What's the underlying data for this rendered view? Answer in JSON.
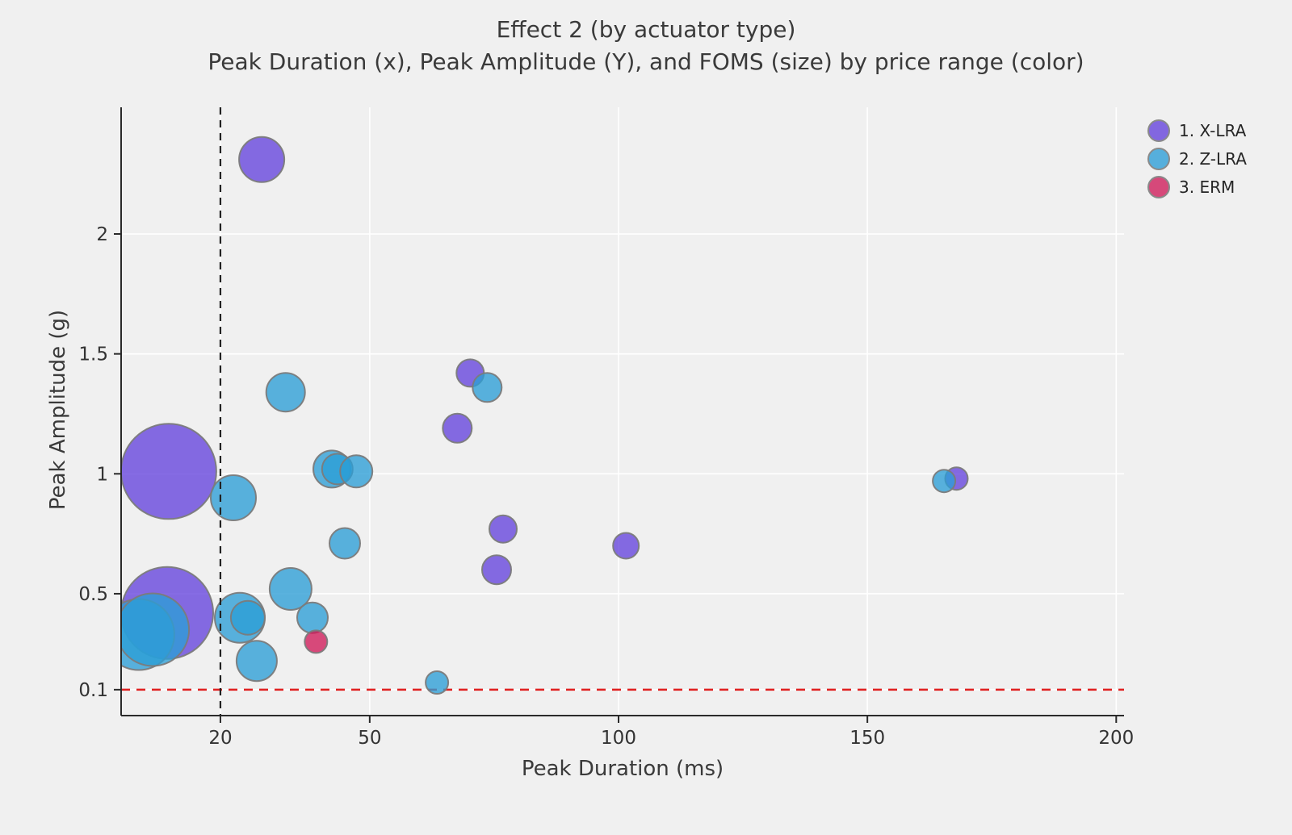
{
  "title": "Effect 2 (by actuator type)",
  "subtitle": "Peak Duration (x), Peak Amplitude (Y), and FOMS (size) by price range (color)",
  "chart_data": {
    "type": "scatter",
    "subtype": "bubble",
    "title": "Effect 2 (by actuator type)",
    "subtitle": "Peak Duration (x), Peak Amplitude (Y), and FOMS (size) by price range (color)",
    "xlabel": "Peak Duration (ms)",
    "ylabel": "Peak Amplitude (g)",
    "x_ticks": [
      20,
      50,
      100,
      150,
      200
    ],
    "y_ticks": [
      0.1,
      0.5,
      1,
      1.5,
      2
    ],
    "x_range": [
      0,
      201.5
    ],
    "y_range": [
      -0.01,
      2.53
    ],
    "grid": "on (white gridlines on light gray background)",
    "legend_position": "top-right outside plot",
    "size_encoding": "FOMS (bubble radius in px, values unlabeled)",
    "reference_lines": [
      {
        "axis": "x",
        "value": 20,
        "style": "dashed",
        "color": "#222222",
        "label": "vertical dashed guide at 20 ms"
      },
      {
        "axis": "y",
        "value": 0.1,
        "style": "dashed",
        "color": "#e02020",
        "label": "horizontal dashed guide at 0.1 g"
      }
    ],
    "series": [
      {
        "name": "1. X-LRA",
        "display_color": "#8267E0",
        "base_color": "#6442DC",
        "points": [
          {
            "x": 9.6,
            "y": 1.01,
            "r": 59
          },
          {
            "x": 9.3,
            "y": 0.42,
            "r": 57
          },
          {
            "x": 28.3,
            "y": 2.31,
            "r": 28
          },
          {
            "x": 67.6,
            "y": 1.19,
            "r": 18
          },
          {
            "x": 70.2,
            "y": 1.42,
            "r": 17
          },
          {
            "x": 75.5,
            "y": 0.6,
            "r": 18
          },
          {
            "x": 76.8,
            "y": 0.77,
            "r": 17
          },
          {
            "x": 101.5,
            "y": 0.7,
            "r": 16
          },
          {
            "x": 167.9,
            "y": 0.98,
            "r": 14
          }
        ]
      },
      {
        "name": "2. Z-LRA",
        "display_color": "#56AFDC",
        "base_color": "#2B9DD6",
        "points": [
          {
            "x": 3.6,
            "y": 0.33,
            "r": 44
          },
          {
            "x": 6.4,
            "y": 0.35,
            "r": 45
          },
          {
            "x": 33.1,
            "y": 1.34,
            "r": 24
          },
          {
            "x": 73.6,
            "y": 1.36,
            "r": 18
          },
          {
            "x": 42.4,
            "y": 1.02,
            "r": 23
          },
          {
            "x": 43.5,
            "y": 1.02,
            "r": 19
          },
          {
            "x": 47.3,
            "y": 1.01,
            "r": 20
          },
          {
            "x": 22.6,
            "y": 0.9,
            "r": 28
          },
          {
            "x": 45.0,
            "y": 0.71,
            "r": 19
          },
          {
            "x": 34.1,
            "y": 0.52,
            "r": 26
          },
          {
            "x": 23.9,
            "y": 0.4,
            "r": 31
          },
          {
            "x": 25.5,
            "y": 0.4,
            "r": 21
          },
          {
            "x": 38.5,
            "y": 0.4,
            "r": 19
          },
          {
            "x": 27.3,
            "y": 0.22,
            "r": 25
          },
          {
            "x": 63.5,
            "y": 0.13,
            "r": 14
          },
          {
            "x": 165.4,
            "y": 0.97,
            "r": 14
          }
        ]
      },
      {
        "name": "3. ERM",
        "display_color": "#D6497A",
        "base_color": "#CF1A59",
        "points": [
          {
            "x": 39.2,
            "y": 0.3,
            "r": 14
          }
        ]
      }
    ]
  },
  "style": {
    "background": "#f0f0f0",
    "gridline_color": "#ffffff",
    "spine_color": "#2a2a2a",
    "tick_label_color": "#333333",
    "bubble_stroke": "#7b7b7b",
    "bubble_opacity": 0.78
  }
}
